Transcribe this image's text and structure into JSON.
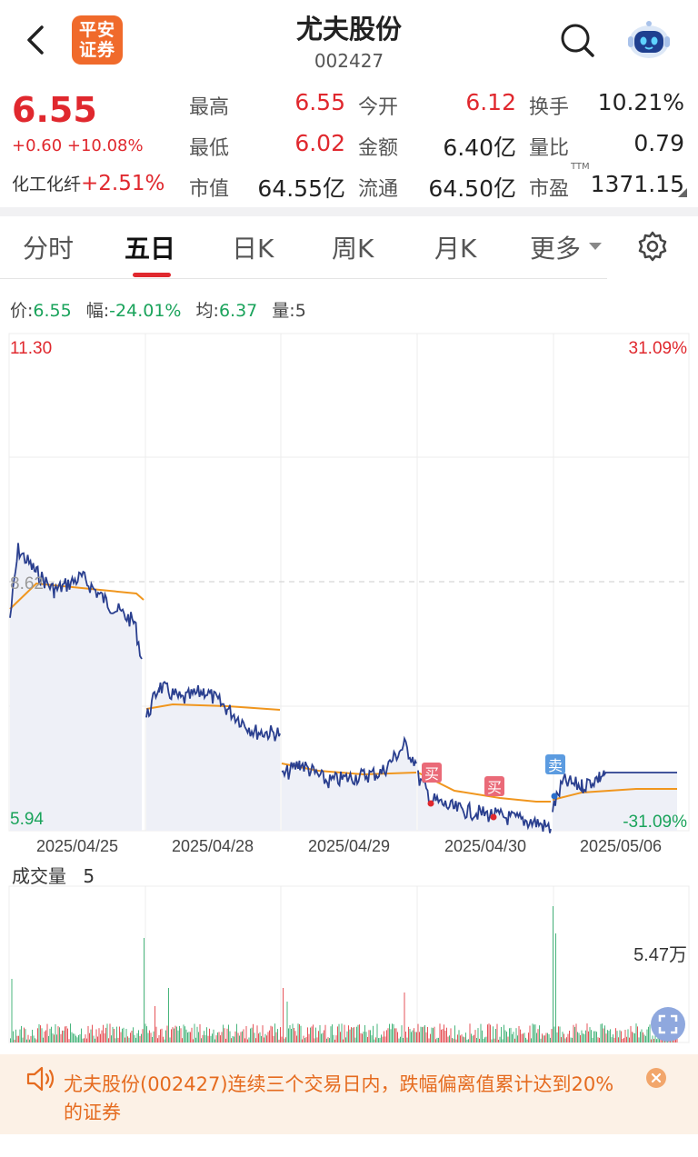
{
  "header": {
    "broker_logo": "平安证券",
    "title": "尤夫股份",
    "code": "002427"
  },
  "quote": {
    "price": "6.55",
    "change": "+0.60 +10.08%",
    "sector_name": "化工化纤",
    "sector_change": "+2.51%",
    "fields": [
      {
        "label": "最高",
        "value": "6.55",
        "color": "#e0282e"
      },
      {
        "label": "最低",
        "value": "6.02",
        "color": "#e0282e"
      },
      {
        "label": "市值",
        "value": "64.55亿",
        "color": "#222222"
      },
      {
        "label": "今开",
        "value": "6.12",
        "color": "#e0282e"
      },
      {
        "label": "金额",
        "value": "6.40亿",
        "color": "#222222"
      },
      {
        "label": "流通",
        "value": "64.50亿",
        "color": "#222222"
      },
      {
        "label": "换手",
        "value": "10.21%",
        "color": "#222222"
      },
      {
        "label": "量比",
        "value": "0.79",
        "color": "#222222"
      },
      {
        "label": "市盈",
        "value": "1371.15",
        "color": "#222222"
      }
    ],
    "ttm": "TTM"
  },
  "tabs": [
    "分时",
    "五日",
    "日K",
    "周K",
    "月K",
    "更多"
  ],
  "active_tab": "五日",
  "info_line": {
    "price_label": "价:",
    "price": "6.55",
    "range_label": "幅:",
    "range": "-24.01%",
    "avg_label": "均:",
    "avg": "6.37",
    "vol_label": "量:",
    "vol": "5"
  },
  "chart": {
    "y_top": "11.30",
    "y_bottom": "5.94",
    "y_mid": "8.62",
    "pct_top": "31.09%",
    "pct_bottom": "-31.09%",
    "dates": [
      "2025/04/25",
      "2025/04/28",
      "2025/04/29",
      "2025/04/30",
      "2025/05/06"
    ],
    "markers": [
      {
        "label": "买",
        "type": "buy"
      },
      {
        "label": "买",
        "type": "buy"
      },
      {
        "label": "卖",
        "type": "sell"
      }
    ],
    "colors": {
      "price_line": "#2a3f8f",
      "avg_line": "#f0961e",
      "up": "#e0282e",
      "down": "#1aa35b"
    }
  },
  "volume": {
    "title": "成交量",
    "value": "5",
    "max_label": "5.47万"
  },
  "notice": {
    "text": "尤夫股份(002427)连续三个交易日内，跌幅偏离值累计达到20%的证券"
  }
}
